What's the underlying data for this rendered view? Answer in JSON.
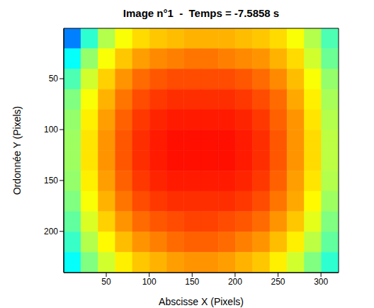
{
  "chart_data": {
    "type": "heatmap",
    "title": "Image n°1  -  Temps = -7.5858 s",
    "x_label": "Abscisse X (Pixels)",
    "y_label": "Ordonnée Y (Pixels)",
    "xlim": [
      0.5,
      320.5
    ],
    "xticks": [
      50,
      100,
      150,
      200,
      250,
      300
    ],
    "ylim": [
      0.5,
      240.5
    ],
    "yticks": [
      50,
      100,
      150,
      200
    ],
    "grid": false,
    "x_bins": [
      0.5,
      20.5,
      40.5,
      60.5,
      80.5,
      100.5,
      120.5,
      140.5,
      160.5,
      180.5,
      200.5,
      220.5,
      240.5,
      260.5,
      280.5,
      300.5,
      320.5
    ],
    "y_bins": [
      0.5,
      20.5,
      40.5,
      60.5,
      80.5,
      100.5,
      120.5,
      140.5,
      160.5,
      180.5,
      200.5,
      220.5,
      240.5
    ],
    "zlim": [
      0,
      1
    ],
    "cells": [
      [
        0.25,
        0.42,
        0.55,
        0.62,
        0.66,
        0.68,
        0.69,
        0.7,
        0.7,
        0.7,
        0.69,
        0.68,
        0.66,
        0.62,
        0.55,
        0.45
      ],
      [
        0.38,
        0.52,
        0.62,
        0.68,
        0.72,
        0.74,
        0.75,
        0.76,
        0.76,
        0.75,
        0.74,
        0.73,
        0.7,
        0.66,
        0.58,
        0.48
      ],
      [
        0.45,
        0.58,
        0.67,
        0.73,
        0.77,
        0.79,
        0.8,
        0.8,
        0.8,
        0.8,
        0.79,
        0.77,
        0.74,
        0.69,
        0.62,
        0.52
      ],
      [
        0.5,
        0.62,
        0.7,
        0.76,
        0.8,
        0.82,
        0.83,
        0.83,
        0.83,
        0.83,
        0.82,
        0.8,
        0.77,
        0.71,
        0.64,
        0.54
      ],
      [
        0.52,
        0.64,
        0.72,
        0.78,
        0.82,
        0.84,
        0.85,
        0.85,
        0.85,
        0.85,
        0.84,
        0.82,
        0.78,
        0.73,
        0.65,
        0.55
      ],
      [
        0.53,
        0.65,
        0.73,
        0.79,
        0.83,
        0.85,
        0.86,
        0.86,
        0.86,
        0.86,
        0.85,
        0.83,
        0.79,
        0.73,
        0.66,
        0.56
      ],
      [
        0.53,
        0.65,
        0.73,
        0.79,
        0.83,
        0.85,
        0.86,
        0.86,
        0.86,
        0.86,
        0.85,
        0.83,
        0.79,
        0.73,
        0.66,
        0.56
      ],
      [
        0.52,
        0.64,
        0.72,
        0.78,
        0.82,
        0.84,
        0.85,
        0.85,
        0.85,
        0.85,
        0.84,
        0.82,
        0.78,
        0.72,
        0.65,
        0.55
      ],
      [
        0.5,
        0.62,
        0.7,
        0.76,
        0.8,
        0.82,
        0.83,
        0.83,
        0.83,
        0.83,
        0.82,
        0.8,
        0.76,
        0.71,
        0.63,
        0.53
      ],
      [
        0.47,
        0.59,
        0.67,
        0.73,
        0.77,
        0.79,
        0.8,
        0.81,
        0.81,
        0.8,
        0.79,
        0.77,
        0.73,
        0.68,
        0.6,
        0.5
      ],
      [
        0.43,
        0.55,
        0.63,
        0.69,
        0.73,
        0.75,
        0.77,
        0.78,
        0.78,
        0.77,
        0.75,
        0.73,
        0.69,
        0.64,
        0.56,
        0.47
      ],
      [
        0.38,
        0.5,
        0.58,
        0.64,
        0.68,
        0.7,
        0.72,
        0.73,
        0.73,
        0.72,
        0.7,
        0.68,
        0.64,
        0.58,
        0.5,
        0.42
      ]
    ]
  }
}
